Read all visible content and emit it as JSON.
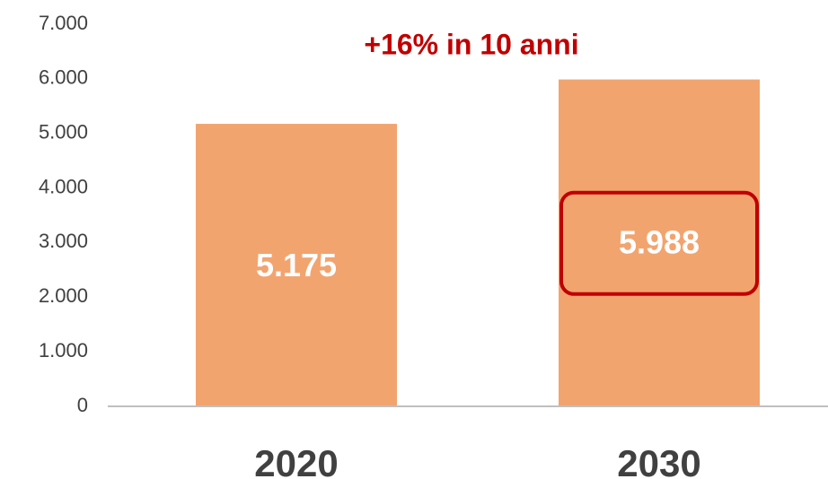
{
  "chart_data": {
    "type": "bar",
    "annotation": "+16% in 10 anni",
    "categories": [
      "2020",
      "2030"
    ],
    "values": [
      5175,
      5988
    ],
    "value_labels": [
      "5.175",
      "5.988"
    ],
    "color": "#f2a46f",
    "ylim": [
      0,
      7000
    ],
    "yticks": [
      0,
      {
        "value": 1000,
        "label": "1.000"
      },
      {
        "value": 2000,
        "label": "2.000"
      },
      {
        "value": 3000,
        "label": "3.000"
      },
      {
        "value": 4000,
        "label": "4.000"
      },
      {
        "value": 5000,
        "label": "5.000"
      },
      {
        "value": 6000,
        "label": "6.000"
      },
      {
        "value": 7000,
        "label": "7.000"
      }
    ],
    "grid": false
  }
}
